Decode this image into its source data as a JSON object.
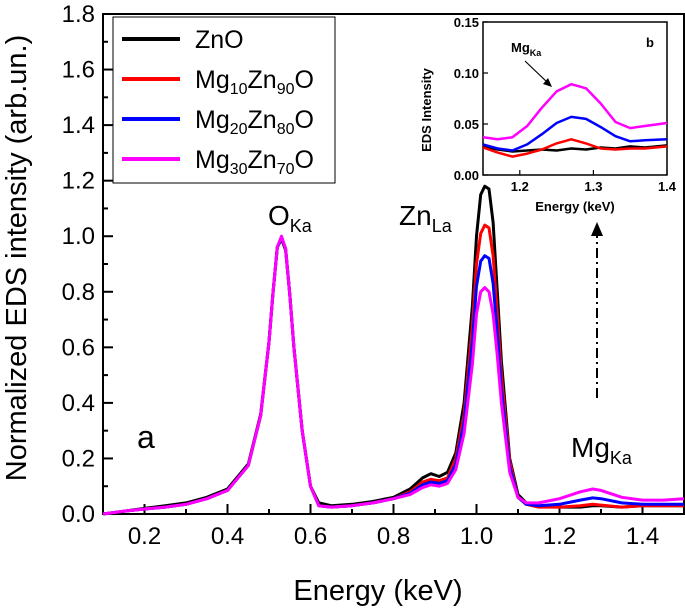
{
  "chart_data": [
    {
      "type": "line",
      "panel": "a",
      "xlabel": "Energy (keV)",
      "ylabel": "Normalized EDS intensity (arb.un.)",
      "xlim": [
        0.1,
        1.5
      ],
      "ylim": [
        0.0,
        1.8
      ],
      "xticks": [
        "0.2",
        "0.4",
        "0.6",
        "0.8",
        "1.0",
        "1.2",
        "1.4"
      ],
      "yticks": [
        "0.0",
        "0.2",
        "0.4",
        "0.6",
        "0.8",
        "1.0",
        "1.2",
        "1.4",
        "1.6",
        "1.8"
      ],
      "legend_position": "top-left",
      "grid": false,
      "annotations": {
        "okb": {
          "base": "O",
          "sub": "Ka"
        },
        "zn": {
          "base": "Zn",
          "sub": "La"
        },
        "mg": {
          "base": "Mg",
          "sub": "Ka"
        }
      },
      "series": [
        {
          "name": {
            "base1": "ZnO",
            "sub1": "",
            "base2": "",
            "sub2": "",
            "base3": ""
          },
          "color": "#000000",
          "x": [
            0.1,
            0.15,
            0.2,
            0.25,
            0.3,
            0.35,
            0.4,
            0.45,
            0.48,
            0.5,
            0.51,
            0.52,
            0.53,
            0.54,
            0.55,
            0.56,
            0.58,
            0.6,
            0.62,
            0.65,
            0.7,
            0.75,
            0.8,
            0.84,
            0.87,
            0.89,
            0.91,
            0.93,
            0.95,
            0.97,
            0.99,
            1.0,
            1.01,
            1.02,
            1.03,
            1.04,
            1.05,
            1.06,
            1.08,
            1.1,
            1.12,
            1.15,
            1.2,
            1.25,
            1.28,
            1.3,
            1.35,
            1.4,
            1.45,
            1.5
          ],
          "y": [
            0.0,
            0.01,
            0.02,
            0.03,
            0.04,
            0.06,
            0.09,
            0.18,
            0.36,
            0.62,
            0.8,
            0.96,
            0.99,
            0.95,
            0.79,
            0.6,
            0.3,
            0.1,
            0.04,
            0.03,
            0.035,
            0.045,
            0.06,
            0.09,
            0.13,
            0.145,
            0.135,
            0.15,
            0.22,
            0.4,
            0.75,
            1.0,
            1.15,
            1.18,
            1.17,
            1.05,
            0.8,
            0.55,
            0.2,
            0.07,
            0.04,
            0.03,
            0.025,
            0.025,
            0.03,
            0.03,
            0.025,
            0.03,
            0.03,
            0.03
          ]
        },
        {
          "name": {
            "base1": "Mg",
            "sub1": "10",
            "base2": "Zn",
            "sub2": "90",
            "base3": "O"
          },
          "color": "#ff0000",
          "x": [
            0.1,
            0.15,
            0.2,
            0.25,
            0.3,
            0.35,
            0.4,
            0.45,
            0.48,
            0.5,
            0.51,
            0.52,
            0.53,
            0.54,
            0.55,
            0.56,
            0.58,
            0.6,
            0.62,
            0.65,
            0.7,
            0.75,
            0.8,
            0.84,
            0.87,
            0.89,
            0.91,
            0.93,
            0.95,
            0.97,
            0.99,
            1.0,
            1.01,
            1.02,
            1.03,
            1.04,
            1.05,
            1.06,
            1.08,
            1.1,
            1.12,
            1.15,
            1.2,
            1.25,
            1.28,
            1.3,
            1.35,
            1.4,
            1.45,
            1.5
          ],
          "y": [
            0.0,
            0.01,
            0.018,
            0.025,
            0.035,
            0.055,
            0.085,
            0.175,
            0.355,
            0.62,
            0.8,
            0.96,
            0.995,
            0.955,
            0.79,
            0.6,
            0.3,
            0.1,
            0.03,
            0.025,
            0.03,
            0.04,
            0.055,
            0.08,
            0.115,
            0.125,
            0.12,
            0.13,
            0.2,
            0.36,
            0.68,
            0.9,
            1.01,
            1.04,
            1.03,
            0.93,
            0.72,
            0.5,
            0.19,
            0.06,
            0.035,
            0.025,
            0.025,
            0.03,
            0.035,
            0.032,
            0.025,
            0.03,
            0.03,
            0.03
          ]
        },
        {
          "name": {
            "base1": "Mg",
            "sub1": "20",
            "base2": "Zn",
            "sub2": "80",
            "base3": "O"
          },
          "color": "#0000ff",
          "x": [
            0.1,
            0.15,
            0.2,
            0.25,
            0.3,
            0.35,
            0.4,
            0.45,
            0.48,
            0.5,
            0.51,
            0.52,
            0.53,
            0.54,
            0.55,
            0.56,
            0.58,
            0.6,
            0.62,
            0.65,
            0.7,
            0.75,
            0.8,
            0.84,
            0.87,
            0.89,
            0.91,
            0.93,
            0.95,
            0.97,
            0.99,
            1.0,
            1.01,
            1.02,
            1.03,
            1.04,
            1.05,
            1.06,
            1.08,
            1.1,
            1.12,
            1.15,
            1.2,
            1.25,
            1.28,
            1.3,
            1.35,
            1.4,
            1.45,
            1.5
          ],
          "y": [
            0.0,
            0.01,
            0.018,
            0.025,
            0.035,
            0.055,
            0.085,
            0.175,
            0.355,
            0.62,
            0.8,
            0.96,
            0.995,
            0.955,
            0.79,
            0.6,
            0.3,
            0.1,
            0.03,
            0.025,
            0.03,
            0.04,
            0.055,
            0.075,
            0.105,
            0.115,
            0.11,
            0.12,
            0.18,
            0.33,
            0.62,
            0.82,
            0.91,
            0.93,
            0.92,
            0.83,
            0.65,
            0.45,
            0.17,
            0.06,
            0.035,
            0.03,
            0.035,
            0.05,
            0.058,
            0.055,
            0.04,
            0.035,
            0.035,
            0.035
          ]
        },
        {
          "name": {
            "base1": "Mg",
            "sub1": "30",
            "base2": "Zn",
            "sub2": "70",
            "base3": "O"
          },
          "color": "#ff00ff",
          "x": [
            0.1,
            0.15,
            0.2,
            0.25,
            0.3,
            0.35,
            0.4,
            0.45,
            0.48,
            0.5,
            0.51,
            0.52,
            0.53,
            0.54,
            0.55,
            0.56,
            0.58,
            0.6,
            0.62,
            0.65,
            0.7,
            0.75,
            0.8,
            0.84,
            0.87,
            0.89,
            0.91,
            0.93,
            0.95,
            0.97,
            0.99,
            1.0,
            1.01,
            1.02,
            1.03,
            1.04,
            1.05,
            1.06,
            1.08,
            1.1,
            1.12,
            1.15,
            1.2,
            1.25,
            1.28,
            1.3,
            1.35,
            1.4,
            1.45,
            1.5
          ],
          "y": [
            0.0,
            0.01,
            0.018,
            0.025,
            0.035,
            0.055,
            0.085,
            0.175,
            0.355,
            0.62,
            0.8,
            0.96,
            1.0,
            0.955,
            0.79,
            0.6,
            0.3,
            0.1,
            0.03,
            0.025,
            0.03,
            0.04,
            0.055,
            0.07,
            0.095,
            0.105,
            0.1,
            0.11,
            0.16,
            0.29,
            0.54,
            0.72,
            0.8,
            0.815,
            0.8,
            0.72,
            0.57,
            0.4,
            0.15,
            0.06,
            0.04,
            0.04,
            0.055,
            0.08,
            0.09,
            0.085,
            0.06,
            0.05,
            0.05,
            0.055
          ]
        }
      ]
    },
    {
      "type": "line",
      "panel": "b",
      "xlabel": "Energy (keV)",
      "ylabel": "EDS Intensity",
      "xlim": [
        1.15,
        1.4
      ],
      "ylim": [
        0.0,
        0.15
      ],
      "xticks": [
        "1.2",
        "1.3",
        "1.4"
      ],
      "yticks": [
        "0.00",
        "0.05",
        "0.10",
        "0.15"
      ],
      "annotation": {
        "base": "Mg",
        "sub": "Ka"
      },
      "series": [
        {
          "color": "#000000",
          "x": [
            1.15,
            1.17,
            1.19,
            1.21,
            1.23,
            1.25,
            1.27,
            1.29,
            1.31,
            1.33,
            1.35,
            1.37,
            1.4
          ],
          "y": [
            0.028,
            0.025,
            0.023,
            0.024,
            0.025,
            0.024,
            0.026,
            0.025,
            0.027,
            0.026,
            0.028,
            0.027,
            0.029
          ]
        },
        {
          "color": "#ff0000",
          "x": [
            1.15,
            1.17,
            1.19,
            1.21,
            1.23,
            1.25,
            1.27,
            1.29,
            1.31,
            1.33,
            1.35,
            1.37,
            1.4
          ],
          "y": [
            0.027,
            0.022,
            0.018,
            0.021,
            0.025,
            0.031,
            0.035,
            0.031,
            0.026,
            0.025,
            0.026,
            0.026,
            0.028
          ]
        },
        {
          "color": "#0000ff",
          "x": [
            1.15,
            1.17,
            1.19,
            1.21,
            1.23,
            1.25,
            1.27,
            1.29,
            1.31,
            1.33,
            1.35,
            1.37,
            1.4
          ],
          "y": [
            0.03,
            0.026,
            0.024,
            0.03,
            0.04,
            0.051,
            0.057,
            0.055,
            0.047,
            0.038,
            0.033,
            0.034,
            0.035
          ]
        },
        {
          "color": "#ff00ff",
          "x": [
            1.15,
            1.17,
            1.19,
            1.21,
            1.23,
            1.25,
            1.27,
            1.29,
            1.31,
            1.33,
            1.35,
            1.37,
            1.4
          ],
          "y": [
            0.037,
            0.035,
            0.037,
            0.048,
            0.066,
            0.082,
            0.089,
            0.085,
            0.07,
            0.052,
            0.046,
            0.048,
            0.051
          ]
        }
      ]
    }
  ],
  "panel_labels": {
    "a": "a",
    "b": "b"
  }
}
